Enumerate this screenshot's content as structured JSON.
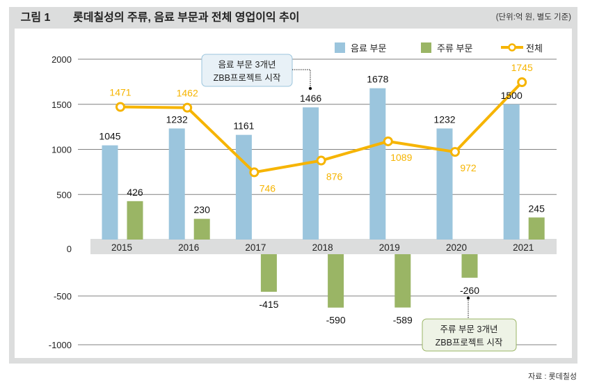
{
  "header": {
    "figure_label": "그림 1",
    "title": "롯데칠성의 주류, 음료 부문과 전체 영업이익 추이",
    "unit": "(단위:억 원, 별도 기준)"
  },
  "footer": {
    "source": "자료 : 롯데칠성"
  },
  "colors": {
    "beverage": "#9bc5dd",
    "liquor": "#9ab565",
    "total": "#f6b400",
    "band": "#dcdddd",
    "grid": "#808080"
  },
  "chart_data": {
    "type": "bar",
    "title": "롯데칠성의 주류, 음료 부문과 전체 영업이익 추이",
    "xlabel": "",
    "ylabel": "",
    "ylim": [
      -1000,
      2000
    ],
    "yticks": [
      "2000",
      "1500",
      "1000",
      "500",
      "0",
      "-500",
      "-1000"
    ],
    "ytick_values": [
      2000,
      1500,
      1000,
      500,
      0,
      -500,
      -1000
    ],
    "grid": true,
    "legend_position": "top-right",
    "categories": [
      "2015",
      "2016",
      "2017",
      "2018",
      "2019",
      "2020",
      "2021"
    ],
    "series": [
      {
        "name": "음료 부문",
        "kind": "bar",
        "values": [
          1045,
          1232,
          1161,
          1466,
          1678,
          1232,
          1500
        ]
      },
      {
        "name": "주류 부문",
        "kind": "bar",
        "values": [
          426,
          230,
          -415,
          -590,
          -589,
          -260,
          245
        ]
      },
      {
        "name": "전체",
        "kind": "line",
        "values": [
          1471,
          1462,
          746,
          876,
          1089,
          972,
          1745
        ]
      }
    ],
    "annotations": [
      {
        "lines": [
          "음료 부문 3개년",
          "ZBB프로젝트 시작"
        ],
        "target_series": "음료 부문",
        "target_category": "2018"
      },
      {
        "lines": [
          "주류 부문 3개년",
          "ZBB프로젝트 시작"
        ],
        "target_series": "주류 부문",
        "target_category": "2020"
      }
    ]
  }
}
